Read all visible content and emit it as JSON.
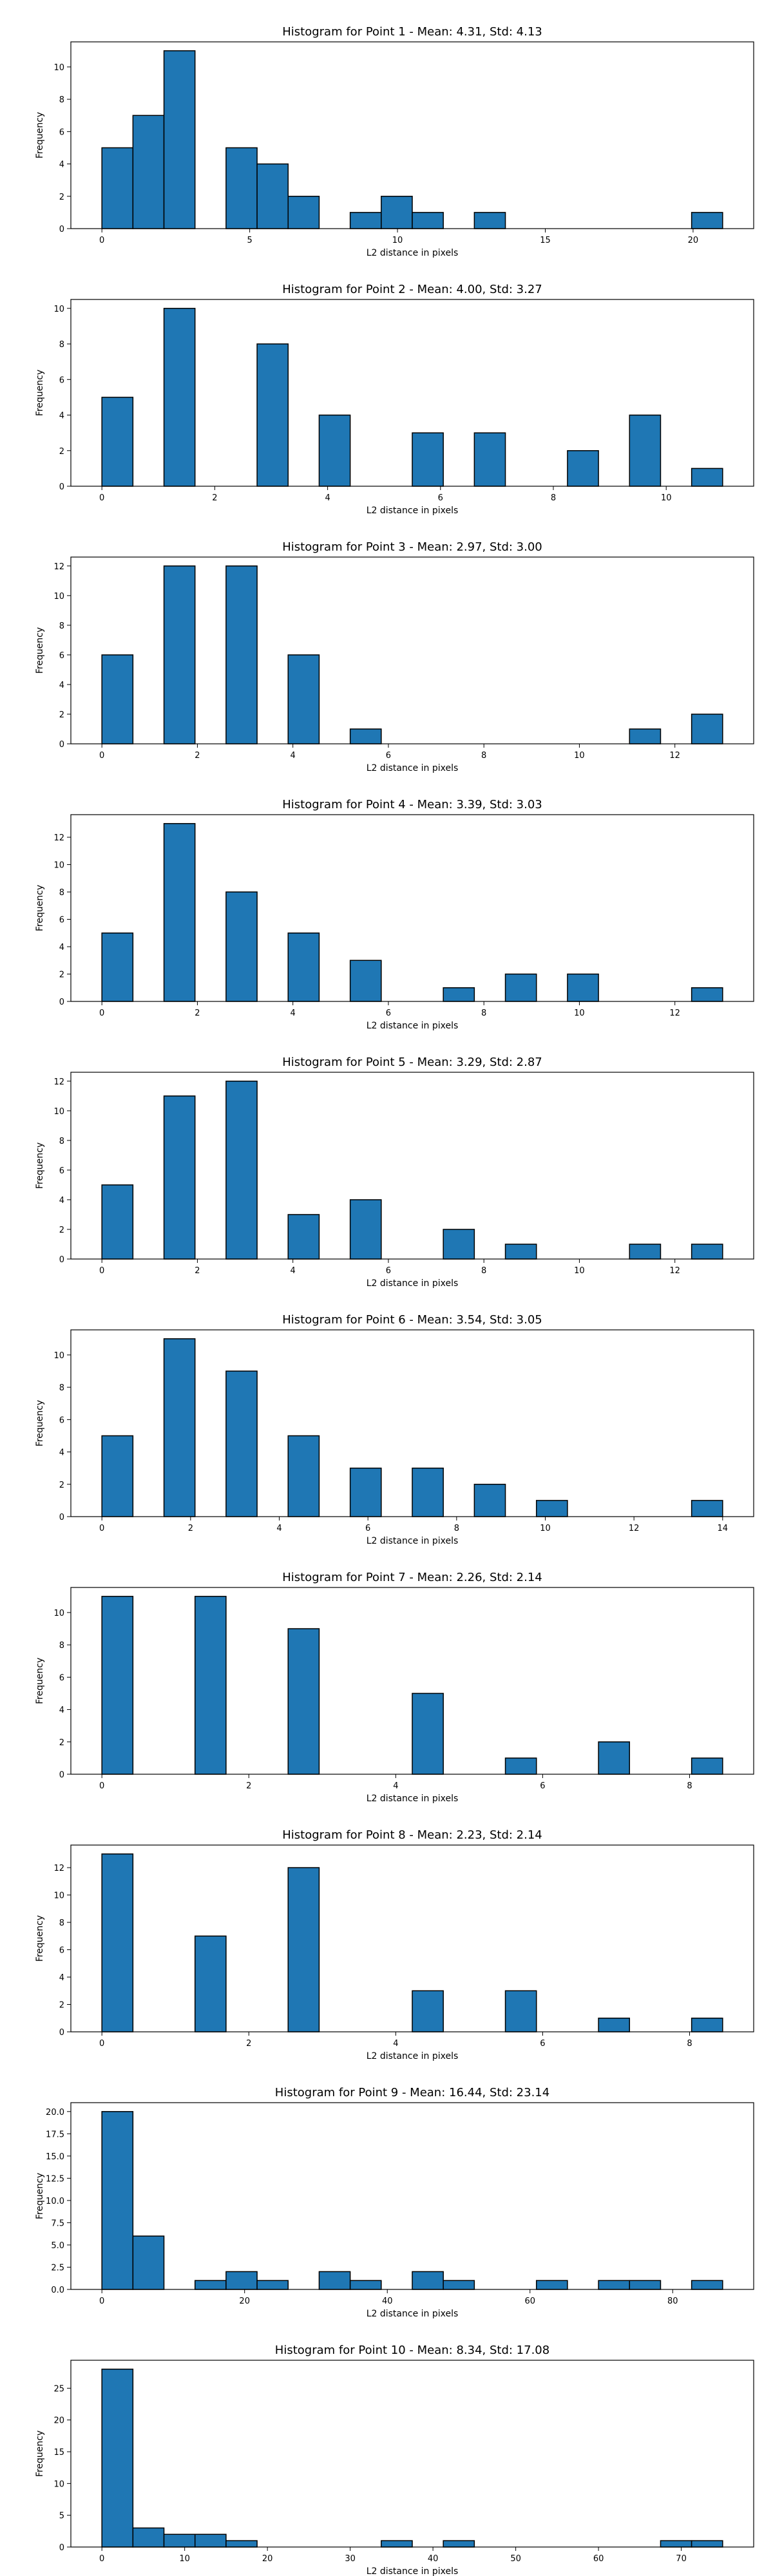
{
  "colors": {
    "bar_fill": "#1f77b4",
    "bar_edge": "#000000",
    "axes": "#000000",
    "background": "#ffffff"
  },
  "chart_data": [
    {
      "type": "bar",
      "title": "Histogram for Point 1 - Mean: 4.31, Std: 4.13",
      "xlabel": "L2 distance in pixels",
      "ylabel": "Frequency",
      "grid": false,
      "xlim": [
        -1.05,
        22.05
      ],
      "ylim": [
        0,
        11.55
      ],
      "xticks": [
        0,
        5,
        10,
        15,
        20
      ],
      "xtick_labels": [
        "0",
        "5",
        "10",
        "15",
        "20"
      ],
      "yticks": [
        0,
        2,
        4,
        6,
        8,
        10
      ],
      "ytick_labels": [
        "0",
        "2",
        "4",
        "6",
        "8",
        "10"
      ],
      "bins": [
        0,
        1.05,
        2.1,
        3.15,
        4.2,
        5.25,
        6.3,
        7.35,
        8.4,
        9.45,
        10.5,
        11.55,
        12.6,
        13.65,
        14.7,
        15.75,
        16.8,
        17.85,
        18.9,
        19.95,
        21.0
      ],
      "counts": [
        5,
        7,
        11,
        0,
        5,
        4,
        2,
        0,
        1,
        2,
        1,
        0,
        1,
        0,
        0,
        0,
        0,
        0,
        0,
        1
      ]
    },
    {
      "type": "bar",
      "title": "Histogram for Point 2 - Mean: 4.00, Std: 3.27",
      "xlabel": "L2 distance in pixels",
      "ylabel": "Frequency",
      "grid": false,
      "xlim": [
        -0.55,
        11.55
      ],
      "ylim": [
        0,
        10.5
      ],
      "xticks": [
        0,
        2,
        4,
        6,
        8,
        10
      ],
      "xtick_labels": [
        "0",
        "2",
        "4",
        "6",
        "8",
        "10"
      ],
      "yticks": [
        0,
        2,
        4,
        6,
        8,
        10
      ],
      "ytick_labels": [
        "0",
        "2",
        "4",
        "6",
        "8",
        "10"
      ],
      "bins": [
        0,
        0.55,
        1.1,
        1.65,
        2.2,
        2.75,
        3.3,
        3.85,
        4.4,
        4.95,
        5.5,
        6.05,
        6.6,
        7.15,
        7.7,
        8.25,
        8.8,
        9.35,
        9.9,
        10.45,
        11.0
      ],
      "counts": [
        5,
        0,
        10,
        0,
        0,
        8,
        0,
        4,
        0,
        0,
        3,
        0,
        3,
        0,
        0,
        2,
        0,
        4,
        0,
        1
      ]
    },
    {
      "type": "bar",
      "title": "Histogram for Point 3 - Mean: 2.97, Std: 3.00",
      "xlabel": "L2 distance in pixels",
      "ylabel": "Frequency",
      "grid": false,
      "xlim": [
        -0.65,
        13.65
      ],
      "ylim": [
        0,
        12.6
      ],
      "xticks": [
        0,
        2,
        4,
        6,
        8,
        10,
        12
      ],
      "xtick_labels": [
        "0",
        "2",
        "4",
        "6",
        "8",
        "10",
        "12"
      ],
      "yticks": [
        0,
        2,
        4,
        6,
        8,
        10,
        12
      ],
      "ytick_labels": [
        "0",
        "2",
        "4",
        "6",
        "8",
        "10",
        "12"
      ],
      "bins": [
        0,
        0.65,
        1.3,
        1.95,
        2.6,
        3.25,
        3.9,
        4.55,
        5.2,
        5.85,
        6.5,
        7.15,
        7.8,
        8.45,
        9.1,
        9.75,
        10.4,
        11.05,
        11.7,
        12.35,
        13.0
      ],
      "counts": [
        6,
        0,
        12,
        0,
        12,
        0,
        6,
        0,
        1,
        0,
        0,
        0,
        0,
        0,
        0,
        0,
        0,
        1,
        0,
        2
      ]
    },
    {
      "type": "bar",
      "title": "Histogram for Point 4 - Mean: 3.39, Std: 3.03",
      "xlabel": "L2 distance in pixels",
      "ylabel": "Frequency",
      "grid": false,
      "xlim": [
        -0.65,
        13.65
      ],
      "ylim": [
        0,
        13.65
      ],
      "xticks": [
        0,
        2,
        4,
        6,
        8,
        10,
        12
      ],
      "xtick_labels": [
        "0",
        "2",
        "4",
        "6",
        "8",
        "10",
        "12"
      ],
      "yticks": [
        0,
        2,
        4,
        6,
        8,
        10,
        12
      ],
      "ytick_labels": [
        "0",
        "2",
        "4",
        "6",
        "8",
        "10",
        "12"
      ],
      "bins": [
        0,
        0.65,
        1.3,
        1.95,
        2.6,
        3.25,
        3.9,
        4.55,
        5.2,
        5.85,
        6.5,
        7.15,
        7.8,
        8.45,
        9.1,
        9.75,
        10.4,
        11.05,
        11.7,
        12.35,
        13.0
      ],
      "counts": [
        5,
        0,
        13,
        0,
        8,
        0,
        5,
        0,
        3,
        0,
        0,
        1,
        0,
        2,
        0,
        2,
        0,
        0,
        0,
        1
      ]
    },
    {
      "type": "bar",
      "title": "Histogram for Point 5 - Mean: 3.29, Std: 2.87",
      "xlabel": "L2 distance in pixels",
      "ylabel": "Frequency",
      "grid": false,
      "xlim": [
        -0.65,
        13.65
      ],
      "ylim": [
        0,
        12.6
      ],
      "xticks": [
        0,
        2,
        4,
        6,
        8,
        10,
        12
      ],
      "xtick_labels": [
        "0",
        "2",
        "4",
        "6",
        "8",
        "10",
        "12"
      ],
      "yticks": [
        0,
        2,
        4,
        6,
        8,
        10,
        12
      ],
      "ytick_labels": [
        "0",
        "2",
        "4",
        "6",
        "8",
        "10",
        "12"
      ],
      "bins": [
        0,
        0.65,
        1.3,
        1.95,
        2.6,
        3.25,
        3.9,
        4.55,
        5.2,
        5.85,
        6.5,
        7.15,
        7.8,
        8.45,
        9.1,
        9.75,
        10.4,
        11.05,
        11.7,
        12.35,
        13.0
      ],
      "counts": [
        5,
        0,
        11,
        0,
        12,
        0,
        3,
        0,
        4,
        0,
        0,
        2,
        0,
        1,
        0,
        0,
        0,
        1,
        0,
        1
      ]
    },
    {
      "type": "bar",
      "title": "Histogram for Point 6 - Mean: 3.54, Std: 3.05",
      "xlabel": "L2 distance in pixels",
      "ylabel": "Frequency",
      "grid": false,
      "xlim": [
        -0.7,
        14.7
      ],
      "ylim": [
        0,
        11.55
      ],
      "xticks": [
        0,
        2,
        4,
        6,
        8,
        10,
        12,
        14
      ],
      "xtick_labels": [
        "0",
        "2",
        "4",
        "6",
        "8",
        "10",
        "12",
        "14"
      ],
      "yticks": [
        0,
        2,
        4,
        6,
        8,
        10
      ],
      "ytick_labels": [
        "0",
        "2",
        "4",
        "6",
        "8",
        "10"
      ],
      "bins": [
        0,
        0.7,
        1.4,
        2.1,
        2.8,
        3.5,
        4.2,
        4.9,
        5.6,
        6.3,
        7.0,
        7.7,
        8.4,
        9.1,
        9.8,
        10.5,
        11.2,
        11.9,
        12.6,
        13.3,
        14.0
      ],
      "counts": [
        5,
        0,
        11,
        0,
        9,
        0,
        5,
        0,
        3,
        0,
        3,
        0,
        2,
        0,
        1,
        0,
        0,
        0,
        0,
        1
      ]
    },
    {
      "type": "bar",
      "title": "Histogram for Point 7 - Mean: 2.26, Std: 2.14",
      "xlabel": "L2 distance in pixels",
      "ylabel": "Frequency",
      "grid": false,
      "xlim": [
        -0.4225,
        8.8725
      ],
      "ylim": [
        0,
        11.55
      ],
      "xticks": [
        0,
        2,
        4,
        6,
        8
      ],
      "xtick_labels": [
        "0",
        "2",
        "4",
        "6",
        "8"
      ],
      "yticks": [
        0,
        2,
        4,
        6,
        8,
        10
      ],
      "ytick_labels": [
        "0",
        "2",
        "4",
        "6",
        "8",
        "10"
      ],
      "bins": [
        0,
        0.4225,
        0.845,
        1.2675,
        1.69,
        2.1125,
        2.535,
        2.9575,
        3.38,
        3.8025,
        4.225,
        4.6475,
        5.07,
        5.4925,
        5.915,
        6.3375,
        6.76,
        7.1825,
        7.605,
        8.0275,
        8.45
      ],
      "counts": [
        11,
        0,
        0,
        11,
        0,
        0,
        9,
        0,
        0,
        0,
        5,
        0,
        0,
        1,
        0,
        0,
        2,
        0,
        0,
        1
      ]
    },
    {
      "type": "bar",
      "title": "Histogram for Point 8 - Mean: 2.23, Std: 2.14",
      "xlabel": "L2 distance in pixels",
      "ylabel": "Frequency",
      "grid": false,
      "xlim": [
        -0.4225,
        8.8725
      ],
      "ylim": [
        0,
        13.65
      ],
      "xticks": [
        0,
        2,
        4,
        6,
        8
      ],
      "xtick_labels": [
        "0",
        "2",
        "4",
        "6",
        "8"
      ],
      "yticks": [
        0,
        2,
        4,
        6,
        8,
        10,
        12
      ],
      "ytick_labels": [
        "0",
        "2",
        "4",
        "6",
        "8",
        "10",
        "12"
      ],
      "bins": [
        0,
        0.4225,
        0.845,
        1.2675,
        1.69,
        2.1125,
        2.535,
        2.9575,
        3.38,
        3.8025,
        4.225,
        4.6475,
        5.07,
        5.4925,
        5.915,
        6.3375,
        6.76,
        7.1825,
        7.605,
        8.0275,
        8.45
      ],
      "counts": [
        13,
        0,
        0,
        7,
        0,
        0,
        12,
        0,
        0,
        0,
        3,
        0,
        0,
        3,
        0,
        0,
        1,
        0,
        0,
        1
      ]
    },
    {
      "type": "bar",
      "title": "Histogram for Point 9 - Mean: 16.44, Std: 23.14",
      "xlabel": "L2 distance in pixels",
      "ylabel": "Frequency",
      "grid": false,
      "xlim": [
        -4.35,
        91.35
      ],
      "ylim": [
        0,
        21.0
      ],
      "xticks": [
        0,
        20,
        40,
        60,
        80
      ],
      "xtick_labels": [
        "0",
        "20",
        "40",
        "60",
        "80"
      ],
      "yticks": [
        0,
        2.5,
        5,
        7.5,
        10,
        12.5,
        15,
        17.5,
        20
      ],
      "ytick_labels": [
        "0.0",
        "2.5",
        "5.0",
        "7.5",
        "10.0",
        "12.5",
        "15.0",
        "17.5",
        "20.0"
      ],
      "bins": [
        0,
        4.35,
        8.7,
        13.05,
        17.4,
        21.75,
        26.1,
        30.45,
        34.8,
        39.15,
        43.5,
        47.85,
        52.2,
        56.55,
        60.9,
        65.25,
        69.6,
        73.95,
        78.3,
        82.65,
        87.0
      ],
      "counts": [
        20,
        6,
        0,
        1,
        2,
        1,
        0,
        2,
        1,
        0,
        2,
        1,
        0,
        0,
        1,
        0,
        1,
        1,
        0,
        1
      ]
    },
    {
      "type": "bar",
      "title": "Histogram for Point 10 - Mean: 8.34, Std: 17.08",
      "xlabel": "L2 distance in pixels",
      "ylabel": "Frequency",
      "grid": false,
      "xlim": [
        -3.75,
        78.75
      ],
      "ylim": [
        0,
        29.4
      ],
      "xticks": [
        0,
        10,
        20,
        30,
        40,
        50,
        60,
        70
      ],
      "xtick_labels": [
        "0",
        "10",
        "20",
        "30",
        "40",
        "50",
        "60",
        "70"
      ],
      "yticks": [
        0,
        5,
        10,
        15,
        20,
        25
      ],
      "ytick_labels": [
        "0",
        "5",
        "10",
        "15",
        "20",
        "25"
      ],
      "bins": [
        0,
        3.75,
        7.5,
        11.25,
        15.0,
        18.75,
        22.5,
        26.25,
        30.0,
        33.75,
        37.5,
        41.25,
        45.0,
        48.75,
        52.5,
        56.25,
        60.0,
        63.75,
        67.5,
        71.25,
        75.0
      ],
      "counts": [
        28,
        3,
        2,
        2,
        1,
        0,
        0,
        0,
        0,
        1,
        0,
        1,
        0,
        0,
        0,
        0,
        0,
        0,
        1,
        1
      ]
    }
  ]
}
